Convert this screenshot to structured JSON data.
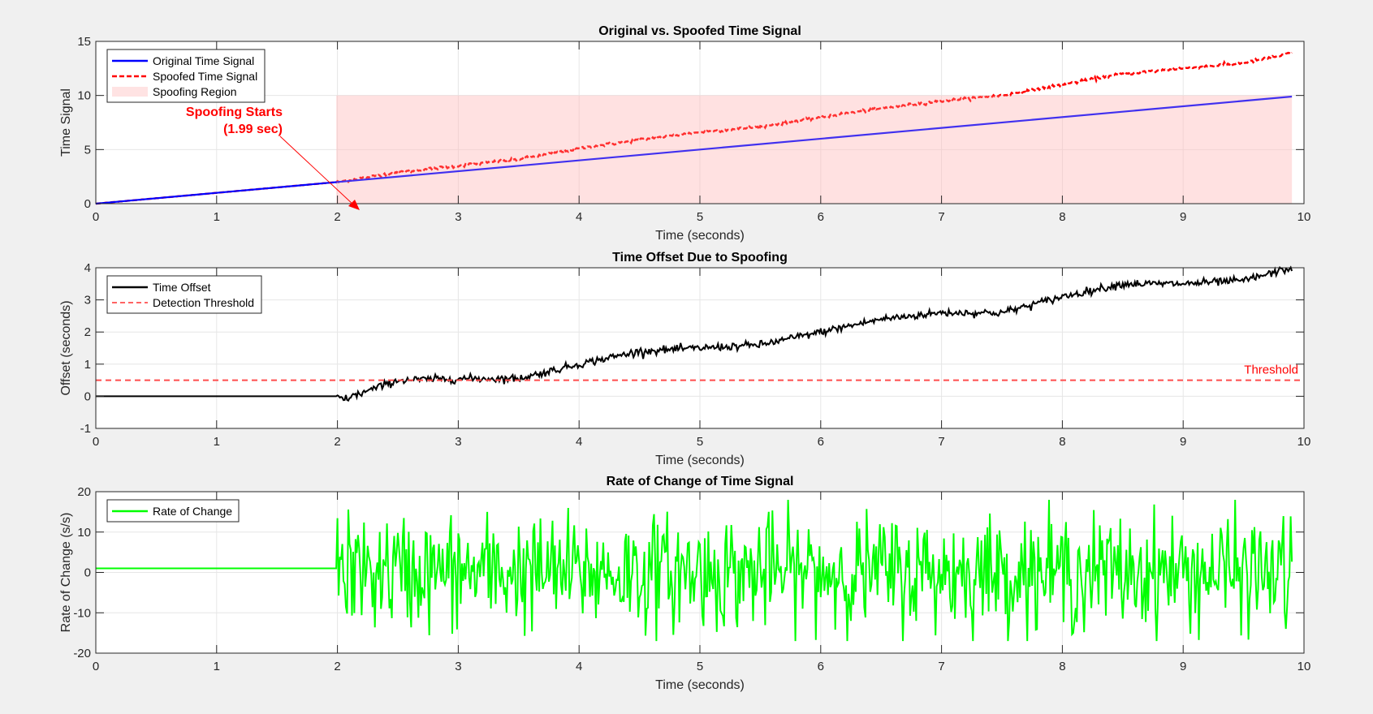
{
  "colors": {
    "figure_bg": "#f0f0f0",
    "axes_bg": "#ffffff",
    "original": "#0000ff",
    "spoofed": "#ff0000",
    "region": "#ffc0c0",
    "offset": "#000000",
    "threshold": "#ff4d4d",
    "rate": "#00ff00",
    "annotation": "#ff0000"
  },
  "chart_data": [
    {
      "type": "line",
      "title": "Original vs. Spoofed Time Signal",
      "xlabel": "Time (seconds)",
      "ylabel": "Time Signal",
      "xlim": [
        0,
        10
      ],
      "ylim": [
        0,
        15
      ],
      "xticks": [
        0,
        1,
        2,
        3,
        4,
        5,
        6,
        7,
        8,
        9,
        10
      ],
      "yticks": [
        0,
        5,
        10,
        15
      ],
      "grid": true,
      "legend_position": "top-left",
      "legend": [
        "Original Time Signal",
        "Spoofed Time Signal",
        "Spoofing Region"
      ],
      "spoof_start": 1.99,
      "region": {
        "x": [
          1.99,
          9.9
        ],
        "y": [
          0,
          10
        ]
      },
      "series": [
        {
          "name": "Original Time Signal",
          "style": "solid",
          "x": [
            0,
            9.9
          ],
          "y": [
            0,
            9.9
          ]
        },
        {
          "name": "Spoofed Time Signal",
          "style": "dashed",
          "x": [
            0,
            1.99,
            2.5,
            3,
            3.5,
            4,
            4.5,
            5,
            5.5,
            6,
            6.5,
            7,
            7.5,
            8,
            8.5,
            9,
            9.5,
            9.9
          ],
          "y": [
            0,
            1.99,
            2.9,
            3.5,
            4.1,
            5.1,
            5.9,
            6.6,
            7.1,
            8.0,
            8.8,
            9.5,
            10.0,
            11.0,
            12.0,
            12.5,
            13.0,
            13.9
          ]
        }
      ],
      "annotation": {
        "line1": "Spoofing Starts",
        "line2": "(1.99 sec)"
      }
    },
    {
      "type": "line",
      "title": "Time Offset Due to Spoofing",
      "xlabel": "Time (seconds)",
      "ylabel": "Offset (seconds)",
      "xlim": [
        0,
        10
      ],
      "ylim": [
        -1,
        4
      ],
      "xticks": [
        0,
        1,
        2,
        3,
        4,
        5,
        6,
        7,
        8,
        9,
        10
      ],
      "yticks": [
        -1,
        0,
        1,
        2,
        3,
        4
      ],
      "grid": true,
      "legend_position": "top-left",
      "legend": [
        "Time Offset",
        "Detection Threshold"
      ],
      "threshold": 0.5,
      "threshold_label": "Threshold",
      "series": [
        {
          "name": "Time Offset",
          "style": "solid",
          "x": [
            0,
            1.99,
            2.05,
            2.5,
            3,
            3.5,
            4,
            4.5,
            5,
            5.5,
            6,
            6.5,
            7,
            7.5,
            8,
            8.5,
            9,
            9.5,
            9.9
          ],
          "y": [
            0,
            0,
            -0.1,
            0.5,
            0.55,
            0.55,
            1.0,
            1.4,
            1.5,
            1.6,
            2.0,
            2.4,
            2.6,
            2.6,
            3.1,
            3.5,
            3.5,
            3.6,
            4.0
          ]
        },
        {
          "name": "Detection Threshold",
          "style": "dashed",
          "x": [
            0,
            10
          ],
          "y": [
            0.5,
            0.5
          ]
        }
      ]
    },
    {
      "type": "line",
      "title": "Rate of Change of Time Signal",
      "xlabel": "Time (seconds)",
      "ylabel": "Rate of Change (s/s)",
      "xlim": [
        0,
        10
      ],
      "ylim": [
        -20,
        20
      ],
      "xticks": [
        0,
        1,
        2,
        3,
        4,
        5,
        6,
        7,
        8,
        9,
        10
      ],
      "yticks": [
        -20,
        -10,
        0,
        10,
        20
      ],
      "grid": true,
      "legend_position": "top-left",
      "legend": [
        "Rate of Change"
      ],
      "series": [
        {
          "name": "Rate of Change",
          "style": "solid",
          "baseline_before_spoof": 1,
          "spoof_start": 1.99,
          "x_end": 9.9,
          "amplitude_range": [
            -17,
            18
          ]
        }
      ]
    }
  ]
}
